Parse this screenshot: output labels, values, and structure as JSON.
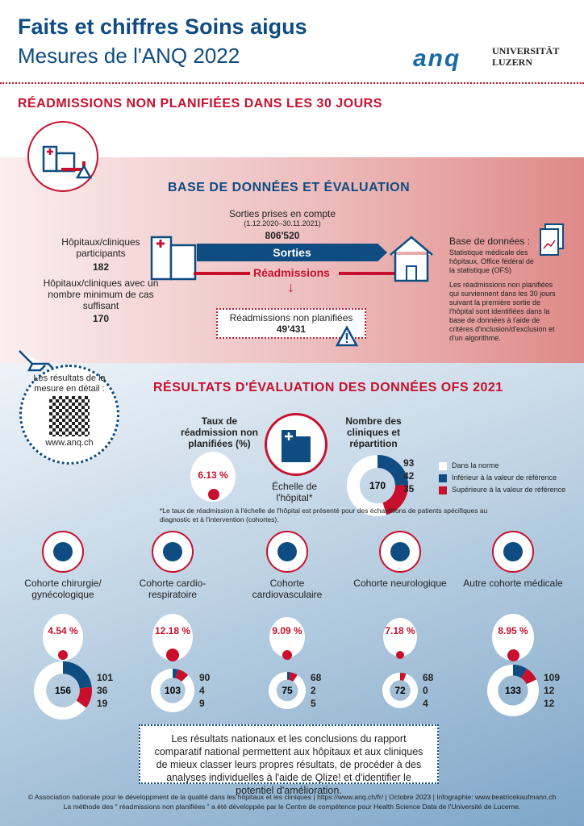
{
  "header": {
    "title": "Faits et chiffres Soins aigus",
    "subtitle": "Mesures de l'ANQ 2022",
    "logo_anq": "anq",
    "logo_uni": "UNIVERSITÄT LUZERN"
  },
  "section1": {
    "title": "RÉADMISSIONS NON PLANIFIÉES DANS LES 30 JOURS",
    "subtitle": "BASE DE DONNÉES ET ÉVALUATION",
    "sorties_label": "Sorties prises en compte",
    "period": "(1.12.2020–30.11.2021)",
    "sorties_value": "806'520",
    "participants_label": "Hôpitaux/cliniques participants",
    "participants_value": "182",
    "min_label": "Hôpitaux/cliniques avec un nombre minimum de cas suffisant",
    "min_value": "170",
    "arrow_sorties": "Sorties",
    "arrow_readmissions": "Réadmissions",
    "unplanned_label": "Réadmissions non planifiées",
    "unplanned_value": "49'431",
    "db_title": "Base de données :",
    "db_source": "Statistique médicale des hôpitaux, Office fédéral de la statistique (OFS)",
    "db_text": "Les réadmissions non planifiées qui surviennent dans les 30 jours suivant la première sortie de l'hôpital sont identifiées dans la base de données à l'aide de critères d'inclusion/d'exclusion et d'un algorithme."
  },
  "qr": {
    "label": "Les résultats de la mesure en détail :",
    "url": "www.anq.ch"
  },
  "section2": {
    "title": "RÉSULTATS D'ÉVALUATION DES DONNÉES OFS 2021",
    "rate_title": "Taux de réadmission non planifiées (%)",
    "rate": "6.13 %",
    "scale_label": "Échelle de l'hôpital*",
    "count_title": "Nombre des cliniques et répartition",
    "total": "170",
    "values": [
      93,
      42,
      35
    ],
    "footnote": "*Le taux de réadmission à l'échelle de l'hôpital est présenté pour des échantillons de patients spécifiques au diagnostic et à l'intervention (cohortes).",
    "legend": [
      {
        "label": "Dans la norme",
        "color": "#ffffff"
      },
      {
        "label": "Inférieur à la valeur de référence",
        "color": "#0f4c81"
      },
      {
        "label": "Supérieure à la valeur de référence",
        "color": "#c8102e"
      }
    ]
  },
  "cohorts": [
    {
      "label": "Cohorte chirurgie/ gynécologique",
      "icon": "uterus-scalpel-icon",
      "rate": "4.54 %",
      "total": "156",
      "values": [
        101,
        36,
        19
      ]
    },
    {
      "label": "Cohorte cardio-respiratoire",
      "icon": "heart-lungs-icon",
      "rate": "12.18 %",
      "total": "103",
      "values": [
        90,
        4,
        9
      ]
    },
    {
      "label": "Cohorte cardiovasculaire",
      "icon": "heart-icon",
      "rate": "9.09 %",
      "total": "75",
      "values": [
        68,
        2,
        5
      ]
    },
    {
      "label": "Cohorte neurologique",
      "icon": "brain-icon",
      "rate": "7.18 %",
      "total": "72",
      "values": [
        68,
        0,
        4
      ]
    },
    {
      "label": "Autre cohorte médicale",
      "icon": "caduceus-icon",
      "rate": "8.95 %",
      "total": "133",
      "values": [
        109,
        12,
        12
      ]
    }
  ],
  "info": "Les résultats nationaux et les conclusions du rapport comparatif national permettent aux hôpitaux et aux cliniques de mieux classer leurs propres résultats, de procéder à des analyses individuelles à l'aide de Qlize! et d'identifier le potentiel d'amélioration.",
  "footer": {
    "line1": "© Association nationale pour le développment de la qualité dans les hôpitaux et les cliniques | https://www.anq.ch/fr/ | Octobre 2023 | Infographie: www.beatricekaufmann.ch",
    "line2": "La méthode des \" réadmissions non planifiées \" a été développée par le Centre de compétence pour Health Science Data de l'Université de Lucerne."
  },
  "colors": {
    "blue": "#0f4c81",
    "red": "#c8102e"
  }
}
